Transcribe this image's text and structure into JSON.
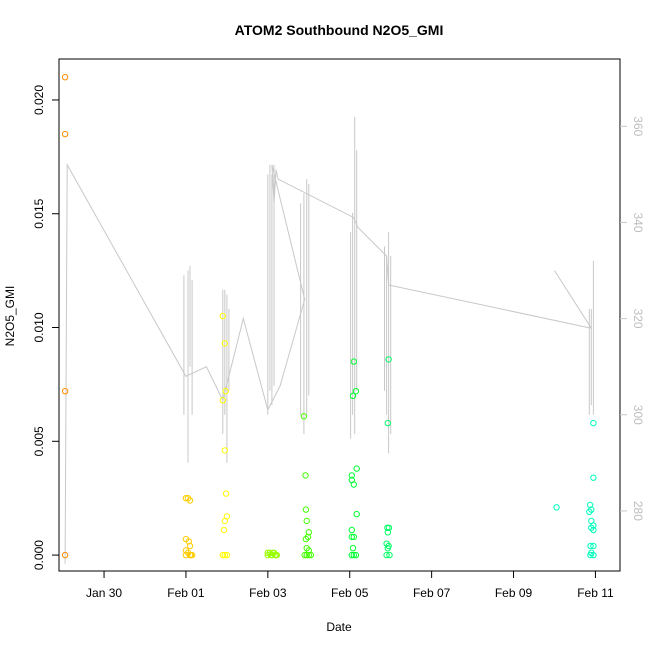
{
  "chart_data": {
    "type": "scatter",
    "title": "ATOM2 Southbound N2O5_GMI",
    "xlabel": "Date",
    "ylabel": "N2O5_GMI",
    "x_ticks": [
      "Jan 30",
      "Feb 01",
      "Feb 03",
      "Feb 05",
      "Feb 07",
      "Feb 09",
      "Feb 11"
    ],
    "x_tick_days": [
      1,
      3,
      5,
      7,
      9,
      11,
      13
    ],
    "x_range_days": [
      -0.1,
      13.6
    ],
    "y_ticks": [
      "0.000",
      "0.005",
      "0.010",
      "0.015",
      "0.020"
    ],
    "y_tick_values": [
      0.0,
      0.005,
      0.01,
      0.015,
      0.02
    ],
    "ylim": [
      -0.0007,
      0.0218
    ],
    "right_axis": {
      "ticks": [
        "280",
        "300",
        "320",
        "340",
        "360"
      ],
      "tick_values": [
        280,
        300,
        320,
        340,
        360
      ],
      "ylim": [
        267.5,
        374
      ],
      "color": "#c8c8c8"
    },
    "series": [
      {
        "color": "#ff8c00",
        "points": [
          [
            0.05,
            0.021
          ],
          [
            0.05,
            0.0185
          ],
          [
            0.05,
            0.0072
          ],
          [
            0.05,
            0.0
          ]
        ]
      },
      {
        "color": "#ffcc00",
        "points": [
          [
            3.0,
            0.0025
          ],
          [
            3.05,
            0.0025
          ],
          [
            3.1,
            0.0024
          ],
          [
            3.0,
            0.0007
          ],
          [
            3.07,
            0.0006
          ],
          [
            3.1,
            0.0004
          ],
          [
            3.0,
            0.0002
          ],
          [
            3.05,
            0.0001
          ],
          [
            3.1,
            0.0
          ],
          [
            3.15,
            0.0
          ],
          [
            3.0,
            0.0
          ],
          [
            3.12,
            0.0
          ]
        ]
      },
      {
        "color": "#ffff00",
        "points": [
          [
            3.9,
            0.0105
          ],
          [
            3.95,
            0.0093
          ],
          [
            3.97,
            0.0072
          ],
          [
            3.9,
            0.0068
          ],
          [
            3.95,
            0.0046
          ],
          [
            3.98,
            0.0027
          ],
          [
            4.0,
            0.0017
          ],
          [
            3.95,
            0.0015
          ],
          [
            3.93,
            0.0011
          ],
          [
            3.9,
            0.0
          ],
          [
            3.95,
            0.0
          ],
          [
            4.0,
            0.0
          ]
        ]
      },
      {
        "color": "#99ff00",
        "points": [
          [
            5.0,
            0.0001
          ],
          [
            5.05,
            0.0001
          ],
          [
            5.1,
            0.0
          ],
          [
            5.15,
            0.0001
          ],
          [
            5.2,
            0.0
          ],
          [
            5.0,
            0.0
          ],
          [
            5.08,
            0.0
          ],
          [
            5.12,
            0.0001
          ],
          [
            5.18,
            0.0
          ],
          [
            5.22,
            0.0
          ]
        ]
      },
      {
        "color": "#44ff00",
        "points": [
          [
            5.88,
            0.0061
          ],
          [
            5.92,
            0.0035
          ],
          [
            5.93,
            0.002
          ],
          [
            5.95,
            0.0015
          ],
          [
            6.0,
            0.001
          ],
          [
            5.93,
            0.0007
          ],
          [
            5.98,
            0.0008
          ],
          [
            5.95,
            0.0003
          ],
          [
            6.0,
            0.0002
          ],
          [
            5.95,
            0.0
          ],
          [
            6.0,
            0.0
          ],
          [
            6.05,
            0.0
          ],
          [
            5.9,
            0.0
          ]
        ]
      },
      {
        "color": "#00ff33",
        "points": [
          [
            7.1,
            0.0085
          ],
          [
            7.15,
            0.0072
          ],
          [
            7.08,
            0.007
          ],
          [
            7.17,
            0.0038
          ],
          [
            7.05,
            0.0035
          ],
          [
            7.05,
            0.0033
          ],
          [
            7.1,
            0.0031
          ],
          [
            7.17,
            0.0018
          ],
          [
            7.05,
            0.0011
          ],
          [
            7.1,
            0.0008
          ],
          [
            7.05,
            0.0008
          ],
          [
            7.08,
            0.0003
          ],
          [
            7.05,
            0.0
          ],
          [
            7.1,
            0.0
          ],
          [
            7.15,
            0.0
          ]
        ]
      },
      {
        "color": "#00ff66",
        "points": [
          [
            7.95,
            0.0086
          ],
          [
            7.93,
            0.0058
          ],
          [
            7.92,
            0.0012
          ],
          [
            7.96,
            0.0012
          ],
          [
            7.93,
            0.001
          ],
          [
            7.9,
            0.0005
          ],
          [
            7.95,
            0.0004
          ],
          [
            7.93,
            0.0003
          ],
          [
            7.9,
            0.0
          ],
          [
            7.97,
            0.0
          ]
        ]
      },
      {
        "color": "#00ffbb",
        "points": [
          [
            12.05,
            0.0021
          ],
          [
            12.87,
            0.0022
          ],
          [
            12.9,
            0.002
          ],
          [
            12.85,
            0.0019
          ],
          [
            12.9,
            0.0015
          ],
          [
            12.95,
            0.0013
          ],
          [
            12.9,
            0.0012
          ],
          [
            12.95,
            0.0011
          ],
          [
            12.95,
            0.0058
          ],
          [
            12.95,
            0.0034
          ],
          [
            12.88,
            0.0004
          ],
          [
            12.95,
            0.0004
          ],
          [
            12.9,
            0.0001
          ],
          [
            12.95,
            0.0
          ],
          [
            12.88,
            0.0
          ]
        ]
      }
    ],
    "gray_trace": {
      "color": "#c8c8c8",
      "segments": [
        [
          [
            0.05,
            269
          ],
          [
            0.1,
            352
          ],
          [
            3.0,
            308
          ],
          [
            3.5,
            310
          ],
          [
            3.9,
            303
          ],
          [
            4.4,
            320
          ],
          [
            5.0,
            301
          ],
          [
            5.3,
            306
          ],
          [
            5.9,
            324
          ],
          [
            5.1,
            352
          ],
          [
            5.15,
            344
          ],
          [
            5.2,
            351
          ],
          [
            5.25,
            349
          ],
          [
            7.1,
            341
          ],
          [
            7.2,
            339
          ],
          [
            7.9,
            333
          ],
          [
            7.95,
            327
          ],
          [
            12.9,
            318
          ]
        ],
        [
          [
            12.0,
            330
          ],
          [
            12.9,
            318
          ]
        ]
      ],
      "spikes": [
        [
          2.95,
          300,
          329
        ],
        [
          3.05,
          290,
          330
        ],
        [
          3.1,
          310,
          331
        ],
        [
          3.15,
          300,
          328
        ],
        [
          3.9,
          296,
          326
        ],
        [
          3.95,
          300,
          326
        ],
        [
          4.0,
          290,
          325
        ],
        [
          4.05,
          305,
          322
        ],
        [
          5.0,
          300,
          350
        ],
        [
          5.05,
          305,
          352
        ],
        [
          5.1,
          302,
          350
        ],
        [
          5.15,
          306,
          352
        ],
        [
          5.8,
          300,
          344
        ],
        [
          5.88,
          296,
          346
        ],
        [
          5.95,
          300,
          349
        ],
        [
          6.0,
          304,
          348
        ],
        [
          7.02,
          295,
          338
        ],
        [
          7.07,
          300,
          342
        ],
        [
          7.12,
          296,
          362
        ],
        [
          7.17,
          305,
          355
        ],
        [
          7.85,
          305,
          335
        ],
        [
          7.9,
          300,
          333
        ],
        [
          7.95,
          292,
          338
        ],
        [
          8.0,
          296,
          333
        ],
        [
          12.85,
          300,
          322
        ],
        [
          12.9,
          302,
          322
        ],
        [
          12.95,
          300,
          332
        ]
      ]
    },
    "grid": false,
    "legend": "none"
  }
}
